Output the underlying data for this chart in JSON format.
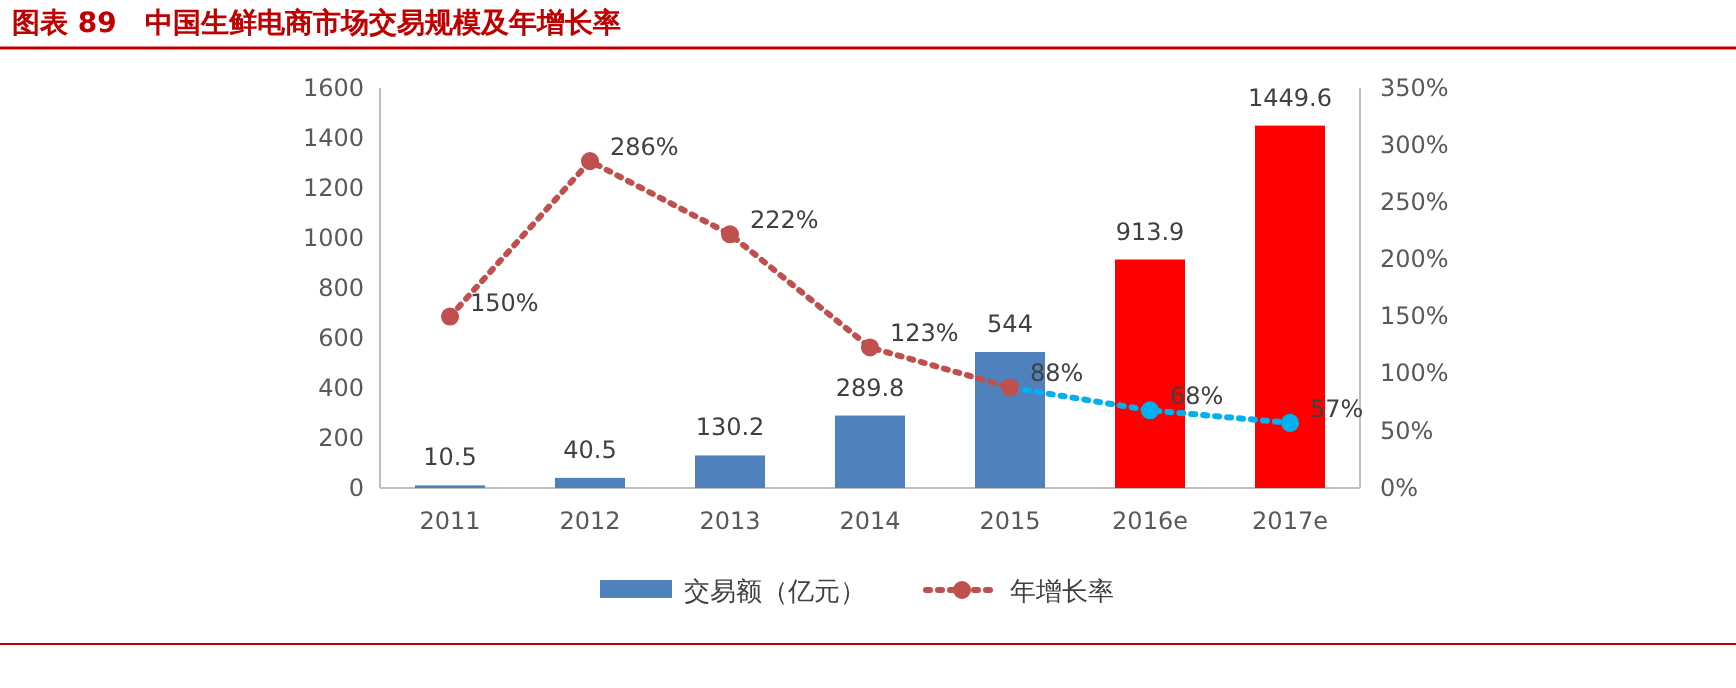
{
  "chart_data": {
    "type": "bar",
    "title": "图表 89　中国生鲜电商市场交易规模及年增长率",
    "categories": [
      "2011",
      "2012",
      "2013",
      "2014",
      "2015",
      "2016e",
      "2017e"
    ],
    "series": [
      {
        "name": "交易额（亿元）",
        "color": "#4f81bd",
        "colors": [
          "#4f81bd",
          "#4f81bd",
          "#4f81bd",
          "#4f81bd",
          "#4f81bd",
          "#ff0000",
          "#ff0000"
        ],
        "values": [
          10.5,
          40.5,
          130.2,
          289.8,
          544,
          913.9,
          1449.6
        ],
        "value_labels": [
          "10.5",
          "40.5",
          "130.2",
          "289.8",
          "544",
          "913.9",
          "1449.6"
        ]
      },
      {
        "name": "年增长率",
        "type": "line",
        "axis": "y2",
        "color": "#c0504d",
        "colors": [
          "#c0504d",
          "#c0504d",
          "#c0504d",
          "#c0504d",
          "#c0504d",
          "#00b0f0",
          "#00b0f0"
        ],
        "line_style": "dotted",
        "marker": "circle",
        "values": [
          150,
          286,
          222,
          123,
          88,
          68,
          57
        ],
        "value_labels": [
          "150%",
          "286%",
          "222%",
          "123%",
          "88%",
          "68%",
          "57%"
        ]
      }
    ],
    "ylim": [
      0,
      1600
    ],
    "yticks": [
      0,
      200,
      400,
      600,
      800,
      1000,
      1200,
      1400,
      1600
    ],
    "y2lim": [
      0,
      350
    ],
    "y2ticks": [
      {
        "value": 0,
        "label": "0%"
      },
      {
        "value": 50,
        "label": "50%"
      },
      {
        "value": 100,
        "label": "100%"
      },
      {
        "value": 150,
        "label": "150%"
      },
      {
        "value": 200,
        "label": "200%"
      },
      {
        "value": 250,
        "label": "250%"
      },
      {
        "value": 300,
        "label": "300%"
      },
      {
        "value": 350,
        "label": "350%"
      }
    ],
    "grid": false,
    "legend": "bottom"
  }
}
